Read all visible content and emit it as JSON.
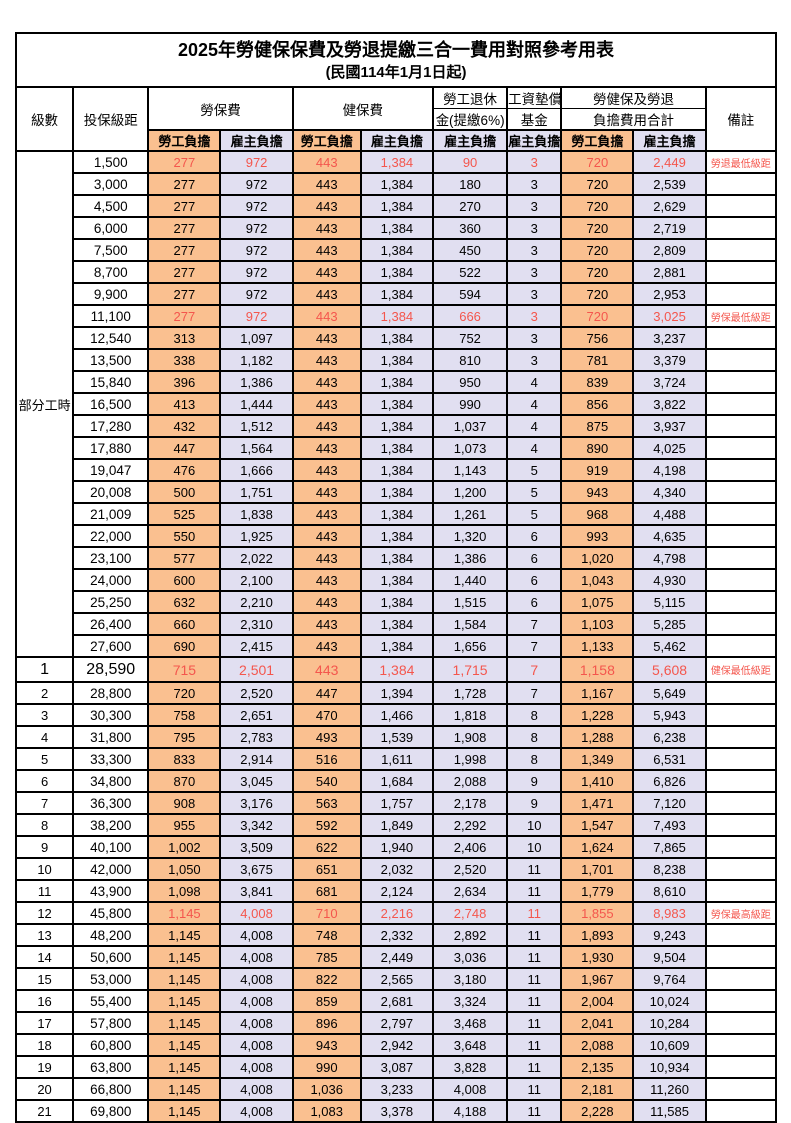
{
  "title": "2025年勞健保保費及勞退提繳三合一費用對照參考用表",
  "subtitle": "(民國114年1月1日起)",
  "colors": {
    "employee_bg": "#FAC090",
    "employer_bg": "#E1DFF1",
    "highlight_text": "#F4564D",
    "border": "#000000"
  },
  "header": {
    "level": "級數",
    "bracket": "投保級距",
    "labor": "勞保費",
    "health": "健保費",
    "pension_line1": "勞工退休",
    "pension_line2": "金(提繳6%)",
    "fund_line1": "工資墊償",
    "fund_line2": "基金",
    "total_line1": "勞健保及勞退",
    "total_line2": "負擔費用合計",
    "remark": "備註",
    "employee": "勞工負擔",
    "employer": "雇主負擔"
  },
  "part_time_label": "部分工時",
  "rows": [
    {
      "lv": "",
      "br": "1,500",
      "v": [
        "277",
        "972",
        "443",
        "1,384",
        "90",
        "3",
        "720",
        "2,449"
      ],
      "rm": "勞退最低級距",
      "red": true
    },
    {
      "lv": "",
      "br": "3,000",
      "v": [
        "277",
        "972",
        "443",
        "1,384",
        "180",
        "3",
        "720",
        "2,539"
      ],
      "rm": ""
    },
    {
      "lv": "",
      "br": "4,500",
      "v": [
        "277",
        "972",
        "443",
        "1,384",
        "270",
        "3",
        "720",
        "2,629"
      ],
      "rm": ""
    },
    {
      "lv": "",
      "br": "6,000",
      "v": [
        "277",
        "972",
        "443",
        "1,384",
        "360",
        "3",
        "720",
        "2,719"
      ],
      "rm": ""
    },
    {
      "lv": "",
      "br": "7,500",
      "v": [
        "277",
        "972",
        "443",
        "1,384",
        "450",
        "3",
        "720",
        "2,809"
      ],
      "rm": ""
    },
    {
      "lv": "",
      "br": "8,700",
      "v": [
        "277",
        "972",
        "443",
        "1,384",
        "522",
        "3",
        "720",
        "2,881"
      ],
      "rm": ""
    },
    {
      "lv": "",
      "br": "9,900",
      "v": [
        "277",
        "972",
        "443",
        "1,384",
        "594",
        "3",
        "720",
        "2,953"
      ],
      "rm": ""
    },
    {
      "lv": "",
      "br": "11,100",
      "v": [
        "277",
        "972",
        "443",
        "1,384",
        "666",
        "3",
        "720",
        "3,025"
      ],
      "rm": "勞保最低級距",
      "red": true
    },
    {
      "lv": "",
      "br": "12,540",
      "v": [
        "313",
        "1,097",
        "443",
        "1,384",
        "752",
        "3",
        "756",
        "3,237"
      ],
      "rm": ""
    },
    {
      "lv": "",
      "br": "13,500",
      "v": [
        "338",
        "1,182",
        "443",
        "1,384",
        "810",
        "3",
        "781",
        "3,379"
      ],
      "rm": ""
    },
    {
      "lv": "",
      "br": "15,840",
      "v": [
        "396",
        "1,386",
        "443",
        "1,384",
        "950",
        "4",
        "839",
        "3,724"
      ],
      "rm": ""
    },
    {
      "lv": "",
      "br": "16,500",
      "v": [
        "413",
        "1,444",
        "443",
        "1,384",
        "990",
        "4",
        "856",
        "3,822"
      ],
      "rm": ""
    },
    {
      "lv": "",
      "br": "17,280",
      "v": [
        "432",
        "1,512",
        "443",
        "1,384",
        "1,037",
        "4",
        "875",
        "3,937"
      ],
      "rm": ""
    },
    {
      "lv": "",
      "br": "17,880",
      "v": [
        "447",
        "1,564",
        "443",
        "1,384",
        "1,073",
        "4",
        "890",
        "4,025"
      ],
      "rm": ""
    },
    {
      "lv": "",
      "br": "19,047",
      "v": [
        "476",
        "1,666",
        "443",
        "1,384",
        "1,143",
        "5",
        "919",
        "4,198"
      ],
      "rm": ""
    },
    {
      "lv": "",
      "br": "20,008",
      "v": [
        "500",
        "1,751",
        "443",
        "1,384",
        "1,200",
        "5",
        "943",
        "4,340"
      ],
      "rm": ""
    },
    {
      "lv": "",
      "br": "21,009",
      "v": [
        "525",
        "1,838",
        "443",
        "1,384",
        "1,261",
        "5",
        "968",
        "4,488"
      ],
      "rm": ""
    },
    {
      "lv": "",
      "br": "22,000",
      "v": [
        "550",
        "1,925",
        "443",
        "1,384",
        "1,320",
        "6",
        "993",
        "4,635"
      ],
      "rm": ""
    },
    {
      "lv": "",
      "br": "23,100",
      "v": [
        "577",
        "2,022",
        "443",
        "1,384",
        "1,386",
        "6",
        "1,020",
        "4,798"
      ],
      "rm": ""
    },
    {
      "lv": "",
      "br": "24,000",
      "v": [
        "600",
        "2,100",
        "443",
        "1,384",
        "1,440",
        "6",
        "1,043",
        "4,930"
      ],
      "rm": ""
    },
    {
      "lv": "",
      "br": "25,250",
      "v": [
        "632",
        "2,210",
        "443",
        "1,384",
        "1,515",
        "6",
        "1,075",
        "5,115"
      ],
      "rm": ""
    },
    {
      "lv": "",
      "br": "26,400",
      "v": [
        "660",
        "2,310",
        "443",
        "1,384",
        "1,584",
        "7",
        "1,103",
        "5,285"
      ],
      "rm": ""
    },
    {
      "lv": "",
      "br": "27,600",
      "v": [
        "690",
        "2,415",
        "443",
        "1,384",
        "1,656",
        "7",
        "1,133",
        "5,462"
      ],
      "rm": ""
    },
    {
      "lv": "1",
      "br": "28,590",
      "v": [
        "715",
        "2,501",
        "443",
        "1,384",
        "1,715",
        "7",
        "1,158",
        "5,608"
      ],
      "rm": "健保最低級距",
      "red": true,
      "lg": true
    },
    {
      "lv": "2",
      "br": "28,800",
      "v": [
        "720",
        "2,520",
        "447",
        "1,394",
        "1,728",
        "7",
        "1,167",
        "5,649"
      ],
      "rm": ""
    },
    {
      "lv": "3",
      "br": "30,300",
      "v": [
        "758",
        "2,651",
        "470",
        "1,466",
        "1,818",
        "8",
        "1,228",
        "5,943"
      ],
      "rm": ""
    },
    {
      "lv": "4",
      "br": "31,800",
      "v": [
        "795",
        "2,783",
        "493",
        "1,539",
        "1,908",
        "8",
        "1,288",
        "6,238"
      ],
      "rm": ""
    },
    {
      "lv": "5",
      "br": "33,300",
      "v": [
        "833",
        "2,914",
        "516",
        "1,611",
        "1,998",
        "8",
        "1,349",
        "6,531"
      ],
      "rm": ""
    },
    {
      "lv": "6",
      "br": "34,800",
      "v": [
        "870",
        "3,045",
        "540",
        "1,684",
        "2,088",
        "9",
        "1,410",
        "6,826"
      ],
      "rm": ""
    },
    {
      "lv": "7",
      "br": "36,300",
      "v": [
        "908",
        "3,176",
        "563",
        "1,757",
        "2,178",
        "9",
        "1,471",
        "7,120"
      ],
      "rm": ""
    },
    {
      "lv": "8",
      "br": "38,200",
      "v": [
        "955",
        "3,342",
        "592",
        "1,849",
        "2,292",
        "10",
        "1,547",
        "7,493"
      ],
      "rm": ""
    },
    {
      "lv": "9",
      "br": "40,100",
      "v": [
        "1,002",
        "3,509",
        "622",
        "1,940",
        "2,406",
        "10",
        "1,624",
        "7,865"
      ],
      "rm": ""
    },
    {
      "lv": "10",
      "br": "42,000",
      "v": [
        "1,050",
        "3,675",
        "651",
        "2,032",
        "2,520",
        "11",
        "1,701",
        "8,238"
      ],
      "rm": ""
    },
    {
      "lv": "11",
      "br": "43,900",
      "v": [
        "1,098",
        "3,841",
        "681",
        "2,124",
        "2,634",
        "11",
        "1,779",
        "8,610"
      ],
      "rm": ""
    },
    {
      "lv": "12",
      "br": "45,800",
      "v": [
        "1,145",
        "4,008",
        "710",
        "2,216",
        "2,748",
        "11",
        "1,855",
        "8,983"
      ],
      "rm": "勞保最高級距",
      "red": true
    },
    {
      "lv": "13",
      "br": "48,200",
      "v": [
        "1,145",
        "4,008",
        "748",
        "2,332",
        "2,892",
        "11",
        "1,893",
        "9,243"
      ],
      "rm": ""
    },
    {
      "lv": "14",
      "br": "50,600",
      "v": [
        "1,145",
        "4,008",
        "785",
        "2,449",
        "3,036",
        "11",
        "1,930",
        "9,504"
      ],
      "rm": ""
    },
    {
      "lv": "15",
      "br": "53,000",
      "v": [
        "1,145",
        "4,008",
        "822",
        "2,565",
        "3,180",
        "11",
        "1,967",
        "9,764"
      ],
      "rm": ""
    },
    {
      "lv": "16",
      "br": "55,400",
      "v": [
        "1,145",
        "4,008",
        "859",
        "2,681",
        "3,324",
        "11",
        "2,004",
        "10,024"
      ],
      "rm": ""
    },
    {
      "lv": "17",
      "br": "57,800",
      "v": [
        "1,145",
        "4,008",
        "896",
        "2,797",
        "3,468",
        "11",
        "2,041",
        "10,284"
      ],
      "rm": ""
    },
    {
      "lv": "18",
      "br": "60,800",
      "v": [
        "1,145",
        "4,008",
        "943",
        "2,942",
        "3,648",
        "11",
        "2,088",
        "10,609"
      ],
      "rm": ""
    },
    {
      "lv": "19",
      "br": "63,800",
      "v": [
        "1,145",
        "4,008",
        "990",
        "3,087",
        "3,828",
        "11",
        "2,135",
        "10,934"
      ],
      "rm": ""
    },
    {
      "lv": "20",
      "br": "66,800",
      "v": [
        "1,145",
        "4,008",
        "1,036",
        "3,233",
        "4,008",
        "11",
        "2,181",
        "11,260"
      ],
      "rm": ""
    },
    {
      "lv": "21",
      "br": "69,800",
      "v": [
        "1,145",
        "4,008",
        "1,083",
        "3,378",
        "4,188",
        "11",
        "2,228",
        "11,585"
      ],
      "rm": ""
    }
  ]
}
